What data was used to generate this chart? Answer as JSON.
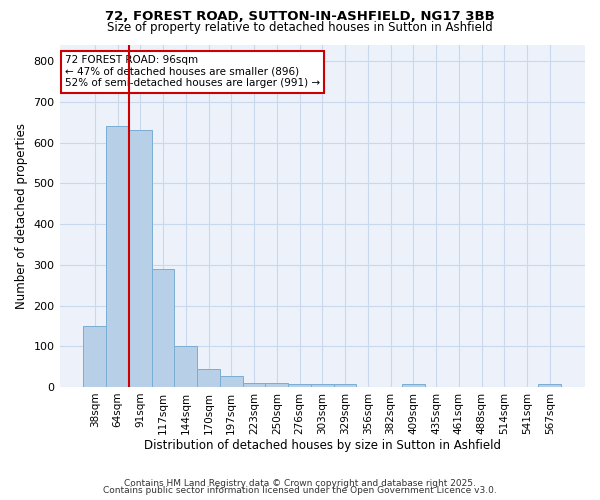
{
  "title1": "72, FOREST ROAD, SUTTON-IN-ASHFIELD, NG17 3BB",
  "title2": "Size of property relative to detached houses in Sutton in Ashfield",
  "xlabel": "Distribution of detached houses by size in Sutton in Ashfield",
  "ylabel": "Number of detached properties",
  "bin_labels": [
    "38sqm",
    "64sqm",
    "91sqm",
    "117sqm",
    "144sqm",
    "170sqm",
    "197sqm",
    "223sqm",
    "250sqm",
    "276sqm",
    "303sqm",
    "329sqm",
    "356sqm",
    "382sqm",
    "409sqm",
    "435sqm",
    "461sqm",
    "488sqm",
    "514sqm",
    "541sqm",
    "567sqm"
  ],
  "bar_values": [
    150,
    640,
    630,
    290,
    100,
    43,
    28,
    10,
    10,
    8,
    8,
    8,
    0,
    0,
    8,
    0,
    0,
    0,
    0,
    0,
    8
  ],
  "bar_color": "#b8cfe8",
  "bar_edge_color": "#7aadd4",
  "grid_color": "#c8d8ee",
  "background_color": "#edf2fa",
  "red_line_x": 1.5,
  "red_line_color": "#cc0000",
  "annotation_text": "72 FOREST ROAD: 96sqm\n← 47% of detached houses are smaller (896)\n52% of semi-detached houses are larger (991) →",
  "annotation_box_color": "#ffffff",
  "annotation_box_edge": "#cc0000",
  "footer_line1": "Contains HM Land Registry data © Crown copyright and database right 2025.",
  "footer_line2": "Contains public sector information licensed under the Open Government Licence v3.0.",
  "ylim": [
    0,
    840
  ],
  "yticks": [
    0,
    100,
    200,
    300,
    400,
    500,
    600,
    700,
    800
  ]
}
